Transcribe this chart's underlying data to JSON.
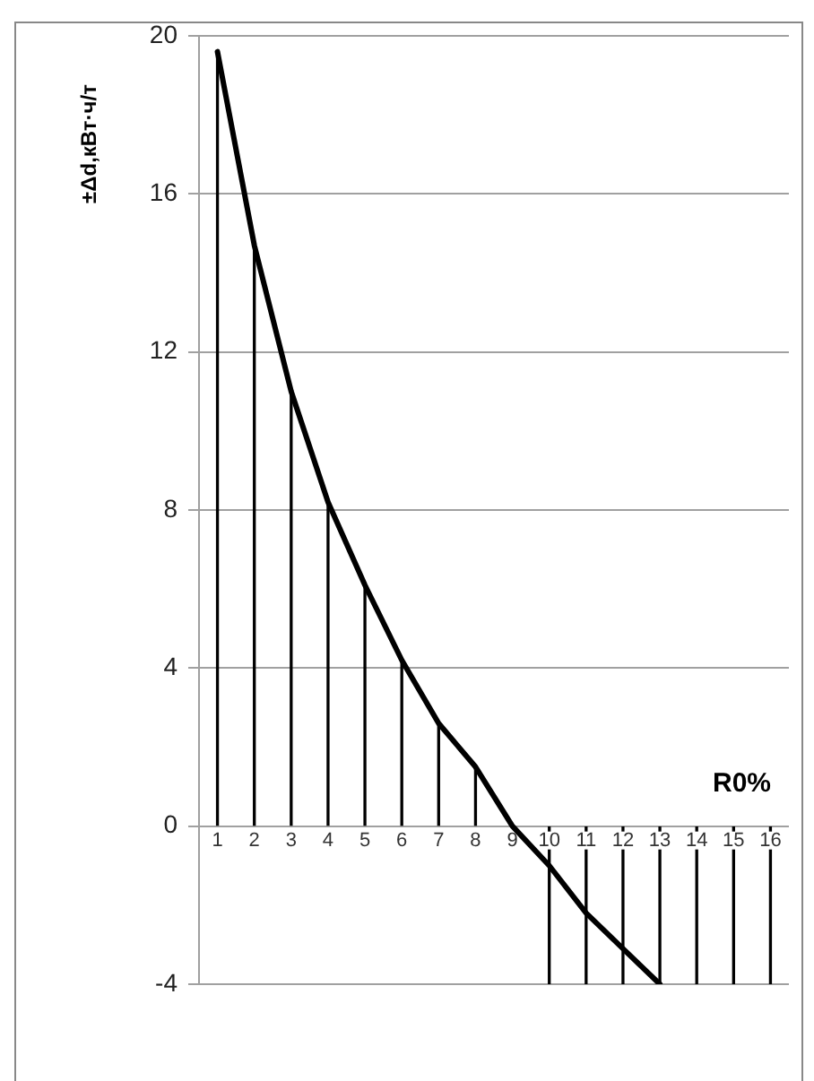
{
  "chart_data": {
    "type": "line",
    "xlabel": "R0%",
    "ylabel": "±Δd,кВт·ч/т",
    "categories": [
      "1",
      "2",
      "3",
      "4",
      "5",
      "6",
      "7",
      "8",
      "9",
      "10",
      "11",
      "12",
      "13",
      "14",
      "15",
      "16"
    ],
    "series": [
      {
        "color": "#000000",
        "values": [
          19.6,
          14.7,
          11.0,
          8.2,
          6.1,
          4.2,
          2.6,
          1.5,
          0,
          -1.0,
          -2.2,
          -3.1,
          -4.0,
          null,
          null,
          null
        ]
      },
      {
        "type": "bar",
        "color": "#000000",
        "values": [
          19.6,
          14.7,
          11.0,
          8.2,
          6.1,
          4.2,
          2.6,
          1.5,
          0,
          -4,
          -4,
          -4,
          -4,
          -4,
          -4,
          -4
        ]
      }
    ],
    "ylim": [
      -4,
      20
    ],
    "yticks": [
      -4,
      0,
      4,
      8,
      12,
      16,
      20
    ],
    "grid": "y",
    "legend": false,
    "marker": "none",
    "line_style": "solid"
  }
}
